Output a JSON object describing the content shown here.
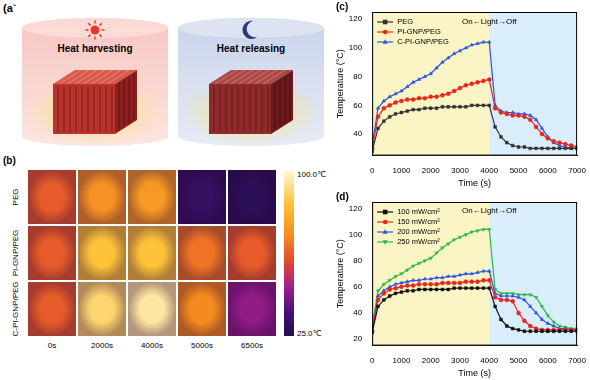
{
  "panels": {
    "a": {
      "label": "(a`",
      "items": [
        {
          "text": "Heat harvesting"
        },
        {
          "text": "Heat releasing"
        }
      ]
    },
    "b": {
      "label": "(b)",
      "rows": [
        "PEG",
        "PI-GNP/PEG",
        "C-PI-GNP/PEG"
      ],
      "columns": [
        "0s",
        "2000s",
        "4000s",
        "5000s",
        "6500s"
      ],
      "cells": [
        [
          62,
          72,
          74,
          30,
          28
        ],
        [
          62,
          85,
          85,
          66,
          62
        ],
        [
          62,
          90,
          95,
          70,
          45
        ]
      ],
      "colorbar": {
        "range": [
          25,
          100
        ],
        "ticks": [
          {
            "value": 100,
            "label": "100.0℃"
          },
          {
            "value": 25,
            "label": "25.0℃"
          }
        ]
      }
    }
  },
  "chart_data": [
    {
      "type": "line",
      "panel_label": "(c)",
      "x_label": "Time (s)",
      "y_label": "Temperature (°C)",
      "x": [
        0,
        200,
        400,
        600,
        800,
        1000,
        1200,
        1400,
        1600,
        1800,
        2000,
        2200,
        2400,
        2600,
        2800,
        3000,
        3200,
        3400,
        3600,
        3800,
        4000,
        4200,
        4400,
        4600,
        4800,
        5000,
        5200,
        5400,
        5600,
        5800,
        6000,
        6200,
        6400,
        6600,
        6800,
        7000
      ],
      "xlim": [
        0,
        7000
      ],
      "xticks": [
        0,
        1000,
        2000,
        3000,
        4000,
        5000,
        6000,
        7000
      ],
      "ylim": [
        25,
        125
      ],
      "yticks": [
        40,
        60,
        80,
        100,
        120
      ],
      "grid": false,
      "legend": "upper left",
      "regions": [
        {
          "from": 0,
          "to": 4000,
          "color": "#fbf4c4"
        },
        {
          "from": 4000,
          "to": 7000,
          "color": "#d9eefa"
        }
      ],
      "annotations": [
        {
          "text": "On←Light→Off",
          "x": 4000,
          "y": 118
        }
      ],
      "series": [
        {
          "name": "PEG",
          "color": "#333333",
          "marker": "square",
          "values": [
            28,
            44,
            49,
            52,
            54,
            55,
            56,
            57,
            57,
            58,
            58,
            58,
            59,
            59,
            59,
            59,
            59,
            60,
            60,
            60,
            60,
            45,
            38,
            34,
            32,
            31,
            31,
            30,
            30,
            30,
            30,
            30,
            30,
            30,
            30,
            30
          ]
        },
        {
          "name": "PI-GNP/PEG",
          "color": "#e8261c",
          "marker": "circle",
          "values": [
            30,
            52,
            58,
            60,
            62,
            63,
            64,
            64,
            65,
            65,
            66,
            66,
            67,
            68,
            70,
            72,
            74,
            75,
            76,
            77,
            78,
            58,
            55,
            54,
            53,
            53,
            52,
            50,
            45,
            40,
            37,
            35,
            34,
            33,
            32,
            31
          ]
        },
        {
          "name": "C-PI-GNP/PEG",
          "color": "#2a55e5",
          "marker": "triangle",
          "values": [
            32,
            58,
            63,
            66,
            68,
            70,
            73,
            76,
            78,
            80,
            82,
            86,
            90,
            93,
            96,
            98,
            100,
            102,
            103,
            104,
            104,
            60,
            56,
            55,
            55,
            54,
            54,
            53,
            50,
            44,
            38,
            34,
            32,
            31,
            30,
            30
          ]
        }
      ]
    },
    {
      "type": "line",
      "panel_label": "(d)",
      "x_label": "Time (s)",
      "y_label": "Temperature (°C)",
      "x": [
        0,
        200,
        400,
        600,
        800,
        1000,
        1200,
        1400,
        1600,
        1800,
        2000,
        2200,
        2400,
        2600,
        2800,
        3000,
        3200,
        3400,
        3600,
        3800,
        4000,
        4200,
        4400,
        4600,
        4800,
        5000,
        5200,
        5400,
        5600,
        5800,
        6000,
        6200,
        6400,
        6600,
        6800,
        7000
      ],
      "xlim": [
        0,
        7000
      ],
      "xticks": [
        0,
        1000,
        2000,
        3000,
        4000,
        5000,
        6000,
        7000
      ],
      "ylim": [
        15,
        125
      ],
      "yticks": [
        20,
        40,
        60,
        80,
        100,
        120
      ],
      "grid": false,
      "legend": "upper left",
      "regions": [
        {
          "from": 0,
          "to": 4000,
          "color": "#fbf4c4"
        },
        {
          "from": 4000,
          "to": 7000,
          "color": "#d9eefa"
        }
      ],
      "annotations": [
        {
          "text": "On←Light→Off",
          "x": 4000,
          "y": 118
        }
      ],
      "series": [
        {
          "name": "100 mW/cm²",
          "color": "#111111",
          "marker": "square",
          "values": [
            25,
            45,
            50,
            53,
            55,
            56,
            57,
            57,
            58,
            58,
            58,
            58,
            58,
            58,
            59,
            59,
            59,
            59,
            59,
            59,
            59,
            45,
            35,
            30,
            28,
            27,
            26,
            26,
            26,
            26,
            26,
            26,
            26,
            26,
            26,
            26
          ]
        },
        {
          "name": "150 mW/cm²",
          "color": "#e8261c",
          "marker": "circle",
          "values": [
            26,
            50,
            55,
            58,
            59,
            60,
            61,
            61,
            62,
            62,
            62,
            62,
            63,
            63,
            63,
            63,
            64,
            64,
            64,
            65,
            65,
            52,
            50,
            50,
            49,
            40,
            34,
            30,
            28,
            27,
            27,
            27,
            27,
            27,
            27,
            27
          ]
        },
        {
          "name": "200 mW/cm²",
          "color": "#2a55e5",
          "marker": "triangle",
          "values": [
            27,
            53,
            57,
            60,
            62,
            63,
            64,
            65,
            65,
            66,
            66,
            67,
            67,
            68,
            68,
            69,
            70,
            70,
            71,
            72,
            72,
            55,
            53,
            53,
            53,
            52,
            50,
            45,
            40,
            35,
            32,
            30,
            28,
            28,
            27,
            27
          ]
        },
        {
          "name": "250 mW/cm²",
          "color": "#2fb84a",
          "marker": "triangle_down",
          "values": [
            30,
            57,
            62,
            65,
            68,
            70,
            73,
            76,
            78,
            80,
            82,
            86,
            90,
            93,
            96,
            98,
            100,
            102,
            103,
            104,
            104,
            58,
            55,
            55,
            55,
            54,
            54,
            54,
            52,
            45,
            38,
            33,
            30,
            29,
            28,
            28
          ]
        }
      ]
    }
  ]
}
